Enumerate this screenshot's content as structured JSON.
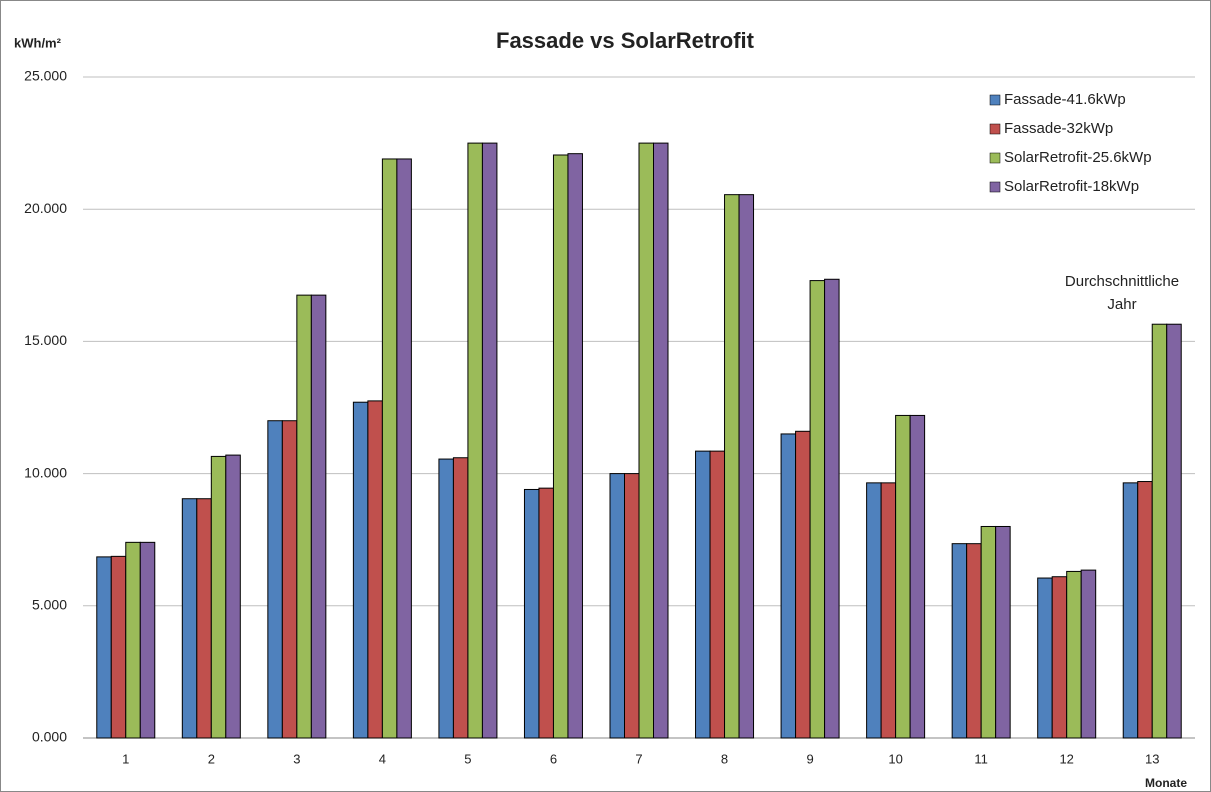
{
  "chart_data": {
    "type": "bar",
    "title": "Fassade vs SolarRetrofit",
    "y_label": "kWh/m²",
    "x_label": "Monate",
    "annotation": [
      "Durchschnittliche",
      "Jahr"
    ],
    "categories": [
      "1",
      "2",
      "3",
      "4",
      "5",
      "6",
      "7",
      "8",
      "9",
      "10",
      "11",
      "12",
      "13"
    ],
    "series": [
      {
        "name": "Fassade-41.6kWp",
        "color": "#4f81bd",
        "values": [
          6850,
          9050,
          12000,
          12700,
          10550,
          9400,
          10000,
          10850,
          11500,
          9650,
          7350,
          6050,
          9650
        ]
      },
      {
        "name": "Fassade-32kWp",
        "color": "#c0504d",
        "values": [
          6870,
          9050,
          12000,
          12750,
          10600,
          9450,
          10000,
          10850,
          11600,
          9650,
          7350,
          6100,
          9700
        ]
      },
      {
        "name": "SolarRetrofit-25.6kWp",
        "color": "#9bbb59",
        "values": [
          7400,
          10650,
          16750,
          21900,
          22500,
          22050,
          22500,
          20550,
          17300,
          12200,
          8000,
          6300,
          15650
        ]
      },
      {
        "name": "SolarRetrofit-18kWp",
        "color": "#8064a2",
        "values": [
          7400,
          10700,
          16750,
          21900,
          22500,
          22100,
          22500,
          20550,
          17350,
          12200,
          8000,
          6350,
          15650
        ]
      }
    ],
    "ylim": [
      0,
      25000
    ],
    "yticks": [
      {
        "value": 0,
        "label": "0.000"
      },
      {
        "value": 5000,
        "label": "5.000"
      },
      {
        "value": 10000,
        "label": "10.000"
      },
      {
        "value": 15000,
        "label": "15.000"
      },
      {
        "value": 20000,
        "label": "20.000"
      },
      {
        "value": 25000,
        "label": "25.000"
      }
    ],
    "grid": true,
    "legend": "top-right"
  }
}
